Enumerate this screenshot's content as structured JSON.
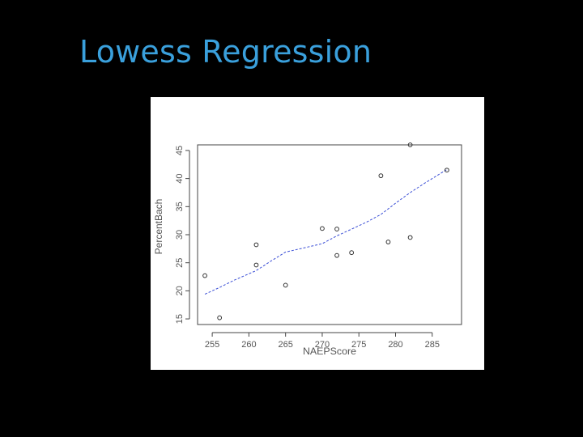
{
  "slide": {
    "title": "Lowess Regression"
  },
  "chart_data": {
    "type": "scatter",
    "title": "",
    "xlabel": "NAEPScore",
    "ylabel": "PercentBach",
    "xlim": [
      253,
      289
    ],
    "ylim": [
      14,
      46
    ],
    "x_ticks": [
      255,
      260,
      265,
      270,
      275,
      280,
      285
    ],
    "y_ticks": [
      15,
      20,
      25,
      30,
      35,
      40,
      45
    ],
    "x_tick_labels": [
      "255",
      "260",
      "265",
      "270",
      "275",
      "280",
      "285"
    ],
    "y_tick_labels": [
      "15",
      "20",
      "25",
      "30",
      "35",
      "40",
      "45"
    ],
    "grid": false,
    "series": [
      {
        "kind": "points",
        "x": [
          254,
          256,
          261,
          261,
          265,
          270,
          272,
          272,
          274,
          278,
          279,
          282,
          282,
          287
        ],
        "y": [
          22.7,
          15.2,
          28.2,
          24.6,
          21.0,
          31.1,
          31.0,
          26.3,
          26.8,
          40.5,
          28.7,
          46.0,
          29.5,
          41.5
        ],
        "color": "#333333",
        "marker": "open-circle"
      },
      {
        "kind": "line",
        "x": [
          254,
          256,
          258,
          261,
          263,
          265,
          268,
          270,
          272,
          274,
          276,
          278,
          280,
          282,
          284,
          287
        ],
        "y": [
          19.4,
          20.6,
          21.9,
          23.6,
          25.3,
          26.9,
          27.8,
          28.4,
          29.8,
          31.0,
          32.2,
          33.6,
          35.6,
          37.5,
          39.2,
          41.6
        ],
        "color": "#3b4fd6",
        "style": "dashed"
      }
    ]
  }
}
